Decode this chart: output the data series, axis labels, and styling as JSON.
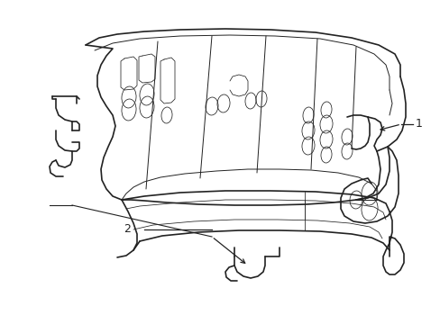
{
  "bg_color": "#ffffff",
  "line_color": "#222222",
  "lw_outer": 1.2,
  "lw_inner": 0.7,
  "lw_detail": 0.55,
  "label1": "1",
  "label2": "2",
  "figsize": [
    4.89,
    3.6
  ],
  "dpi": 100,
  "xlim": [
    0,
    489
  ],
  "ylim": [
    0,
    360
  ]
}
